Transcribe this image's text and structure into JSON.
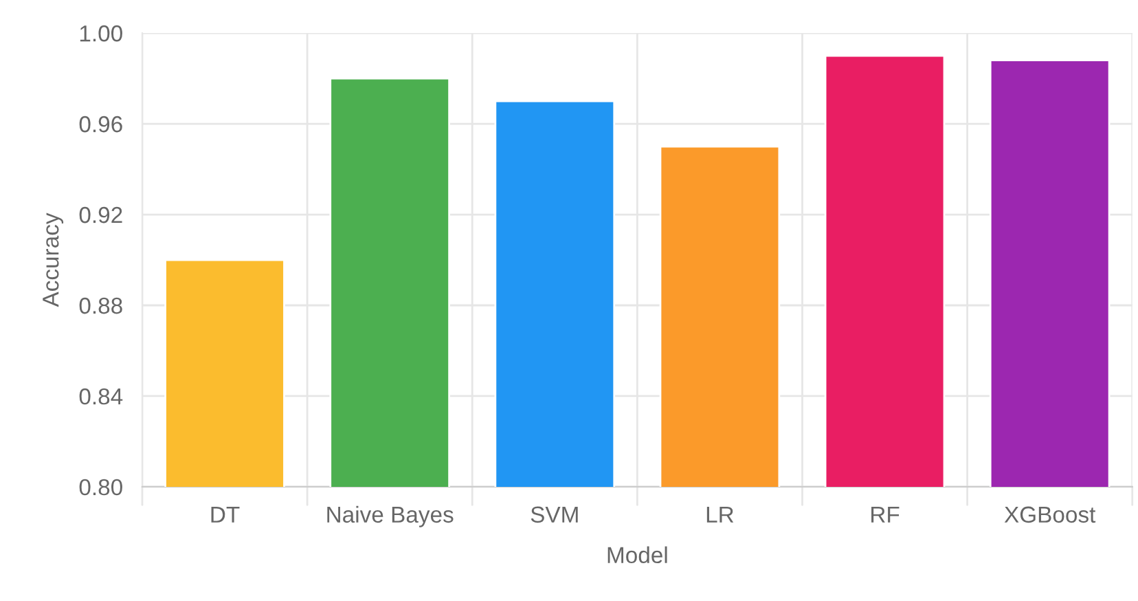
{
  "chart_data": {
    "type": "bar",
    "xlabel": "Model",
    "ylabel": "Accuracy",
    "categories": [
      "DT",
      "Naive Bayes",
      "SVM",
      "LR",
      "RF",
      "XGBoost"
    ],
    "values": [
      0.9,
      0.98,
      0.97,
      0.95,
      0.99,
      0.988
    ],
    "colors": [
      "#fbbc2e",
      "#4caf50",
      "#2196f3",
      "#fb9a2a",
      "#e91e63",
      "#9c27b0"
    ],
    "ylim": [
      0.8,
      1.0
    ],
    "yticks": [
      {
        "value": 0.8,
        "label": "0.80"
      },
      {
        "value": 0.84,
        "label": "0.84"
      },
      {
        "value": 0.88,
        "label": "0.88"
      },
      {
        "value": 0.92,
        "label": "0.92"
      },
      {
        "value": 0.96,
        "label": "0.96"
      },
      {
        "value": 1.0,
        "label": "1.00"
      }
    ],
    "grid": true,
    "legend": false
  }
}
